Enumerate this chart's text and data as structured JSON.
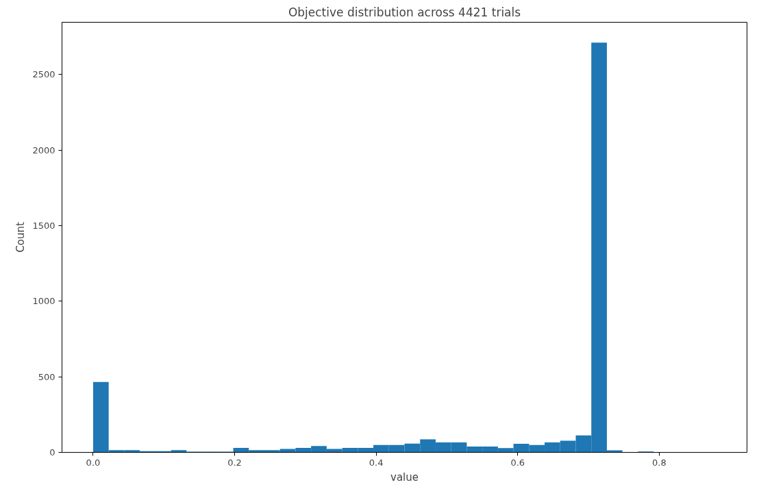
{
  "chart_data": {
    "type": "histogram",
    "title": "Objective distribution across 4421 trials",
    "xlabel": "value",
    "ylabel": "Count",
    "color": "#1f77b4",
    "bins": [
      0,
      0.022,
      0.044,
      0.066,
      0.088,
      0.11,
      0.132,
      0.154,
      0.176,
      0.198,
      0.22,
      0.242,
      0.264,
      0.286,
      0.308,
      0.33,
      0.352,
      0.374,
      0.396,
      0.418,
      0.44,
      0.462,
      0.484,
      0.506,
      0.528,
      0.55,
      0.572,
      0.594,
      0.616,
      0.638,
      0.66,
      0.682,
      0.704,
      0.726,
      0.748,
      0.77,
      0.792,
      0.814,
      0.836,
      0.858,
      0.88
    ],
    "values": [
      465,
      15,
      15,
      8,
      8,
      15,
      5,
      5,
      5,
      30,
      15,
      15,
      23,
      30,
      42,
      23,
      30,
      30,
      49,
      49,
      58,
      86,
      66,
      66,
      38,
      38,
      28,
      57,
      49,
      66,
      77,
      112,
      2710,
      14,
      0,
      6,
      0,
      0,
      0,
      0
    ],
    "xlim": [
      -0.044,
      0.924
    ],
    "ylim": [
      0,
      2845
    ],
    "xticks": [
      {
        "value": 0,
        "label": "0.0"
      },
      0.2,
      0.4,
      0.6,
      0.8
    ],
    "yticks": [
      0,
      500,
      1000,
      1500,
      2000,
      2500
    ],
    "grid": false
  }
}
